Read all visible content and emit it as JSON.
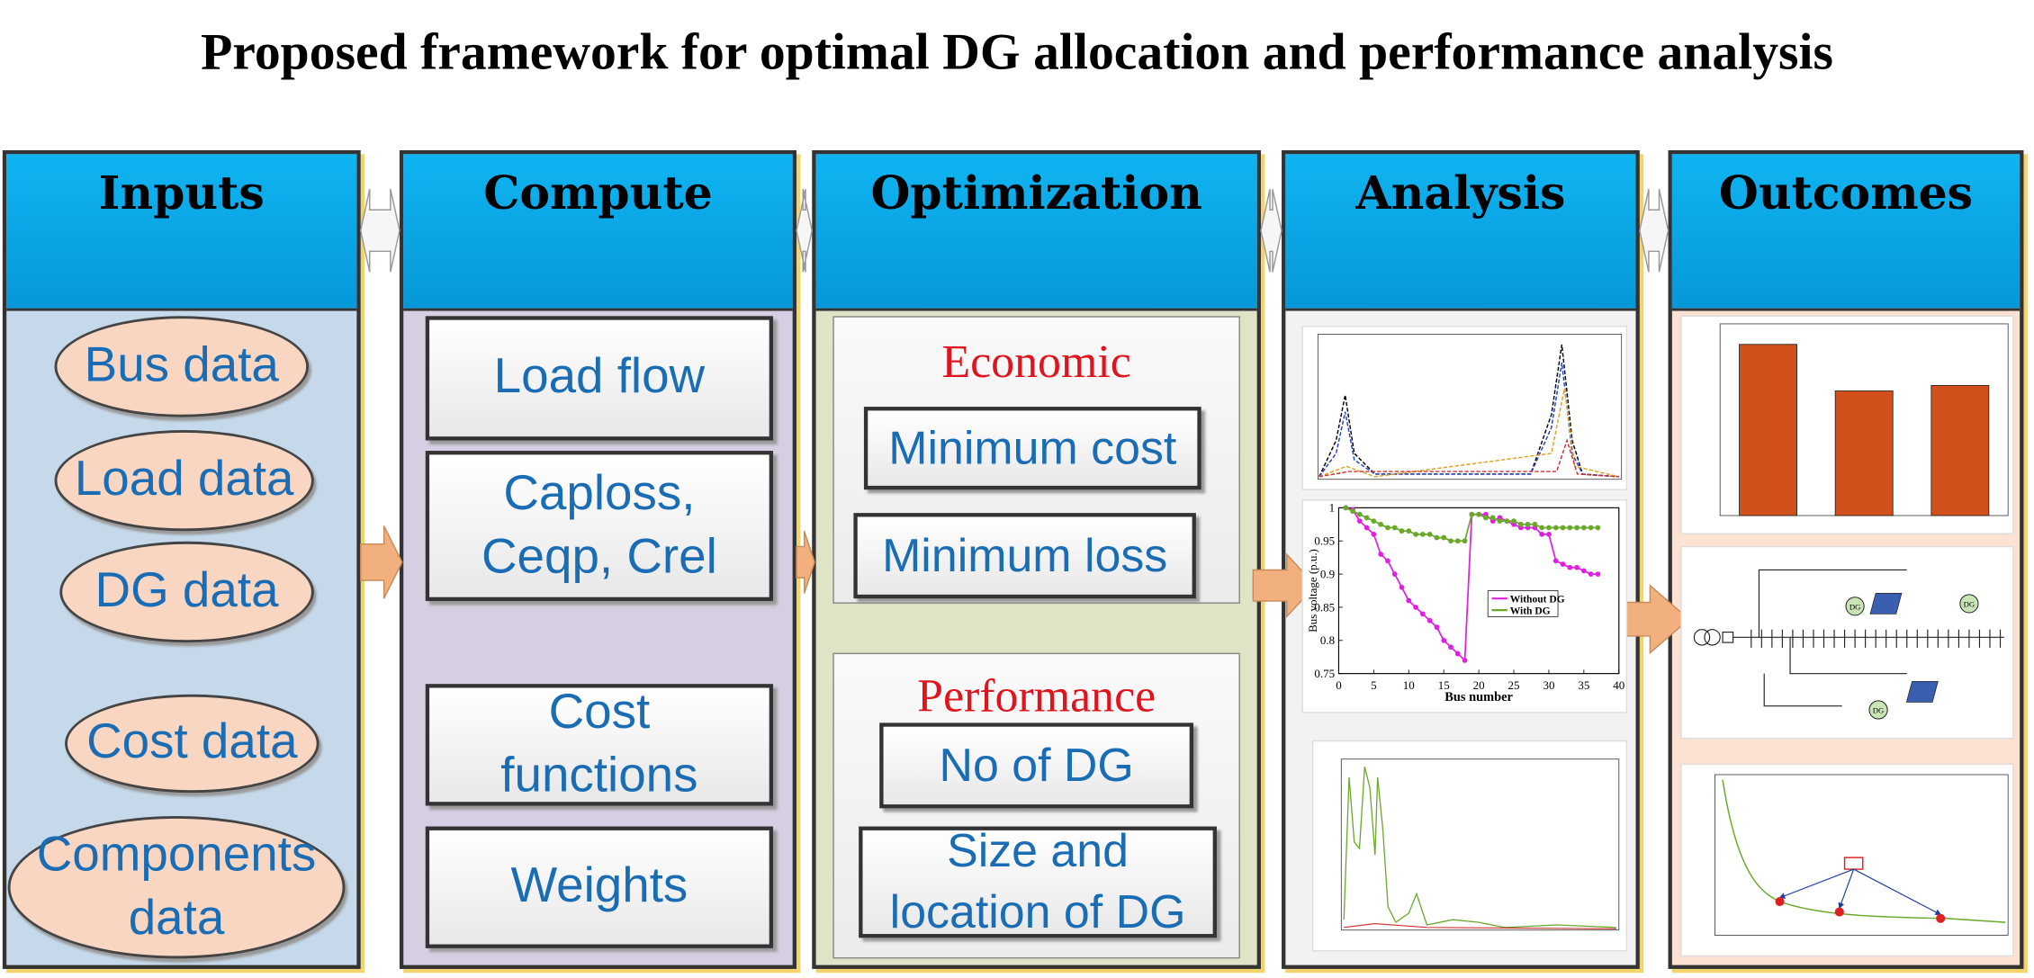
{
  "title": "Proposed framework for optimal DG allocation and performance analysis",
  "columns": [
    {
      "header": "Inputs",
      "items": [
        [
          "Bus data"
        ],
        [
          "Load data"
        ],
        [
          "DG data"
        ],
        [
          "Cost data"
        ],
        [
          "Components",
          "data"
        ]
      ]
    },
    {
      "header": "Compute",
      "items": [
        [
          "Load flow"
        ],
        [
          "Caploss,",
          "Ceqp, Crel"
        ],
        [
          "Cost",
          "functions"
        ],
        [
          "Weights"
        ]
      ]
    },
    {
      "header": "Optimization",
      "groups": [
        {
          "heading": "Economic",
          "items": [
            [
              "Minimum cost"
            ],
            [
              "Minimum loss"
            ]
          ]
        },
        {
          "heading": "Performance",
          "items": [
            [
              "No of DG"
            ],
            [
              "Size and",
              "location of DG"
            ]
          ]
        }
      ]
    },
    {
      "header": "Analysis"
    },
    {
      "header": "Outcomes"
    }
  ],
  "voltage_plot": {
    "x_label": "Bus number",
    "y_label": "Bus voltage (p.u.)",
    "x": [
      1,
      2,
      3,
      4,
      5,
      6,
      7,
      8,
      9,
      10,
      11,
      12,
      13,
      14,
      15,
      16,
      17,
      18,
      19,
      20,
      21,
      22,
      23,
      24,
      25,
      26,
      27,
      28,
      29,
      30,
      31,
      32,
      33,
      34,
      35,
      36,
      37
    ],
    "series": [
      {
        "name": "Without DG",
        "color": "#e020e0",
        "values": [
          1,
          0.997,
          0.98,
          0.97,
          0.96,
          0.93,
          0.92,
          0.9,
          0.88,
          0.86,
          0.85,
          0.84,
          0.83,
          0.82,
          0.8,
          0.79,
          0.78,
          0.77,
          0.99,
          0.99,
          0.99,
          0.98,
          0.985,
          0.98,
          0.975,
          0.97,
          0.97,
          0.97,
          0.96,
          0.96,
          0.92,
          0.915,
          0.91,
          0.91,
          0.905,
          0.9,
          0.9
        ]
      },
      {
        "name": "With DG",
        "color": "#6aa82a",
        "values": [
          1,
          0.995,
          0.99,
          0.985,
          0.98,
          0.975,
          0.97,
          0.97,
          0.965,
          0.965,
          0.96,
          0.96,
          0.96,
          0.955,
          0.955,
          0.95,
          0.95,
          0.95,
          0.99,
          0.99,
          0.985,
          0.985,
          0.98,
          0.98,
          0.98,
          0.975,
          0.975,
          0.975,
          0.97,
          0.97,
          0.97,
          0.97,
          0.97,
          0.97,
          0.97,
          0.97,
          0.97
        ]
      }
    ],
    "xlim": [
      0,
      40
    ],
    "xticks": [
      0,
      5,
      10,
      15,
      20,
      25,
      30,
      35,
      40
    ],
    "ylim": [
      0.75,
      1
    ],
    "yticks": [
      0.75,
      0.8,
      0.85,
      0.9,
      0.95,
      1
    ]
  },
  "cost_bars": {
    "values": [
      125,
      91,
      95
    ],
    "color": "#d2501c",
    "ylim": [
      0,
      140
    ]
  },
  "network_tags": [
    "DG",
    "DG",
    "DG"
  ]
}
